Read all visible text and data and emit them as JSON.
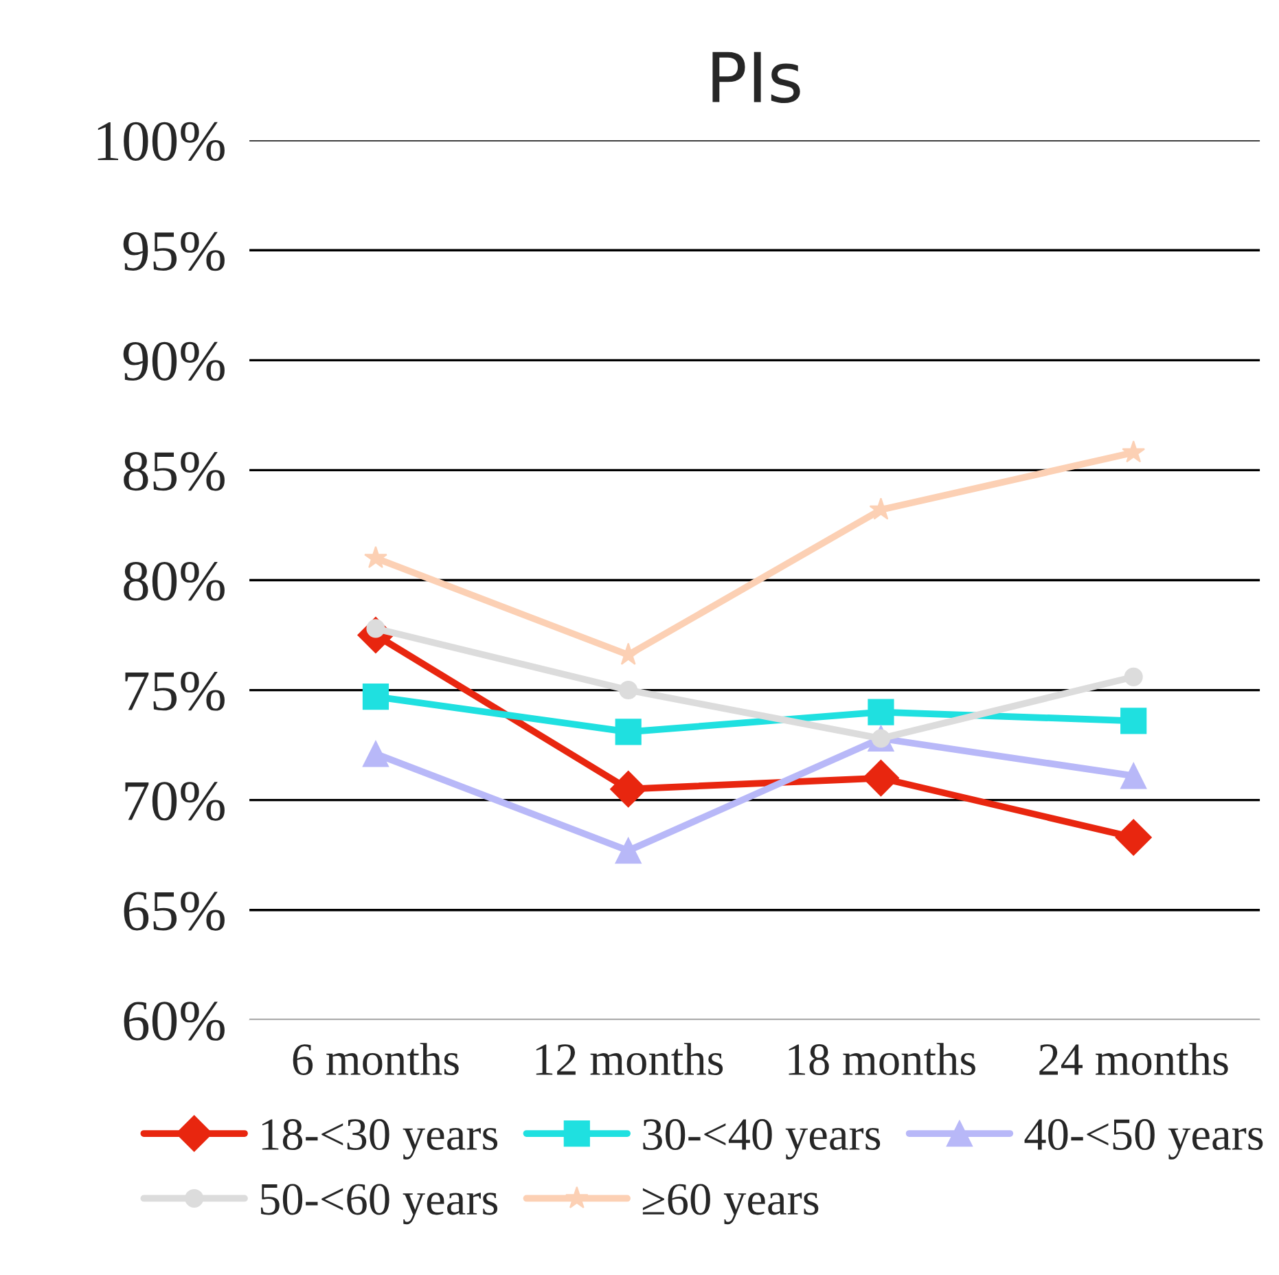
{
  "chart_data": {
    "type": "line",
    "title": "PIs",
    "categories": [
      "6 months",
      "12 months",
      "18 months",
      "24 months"
    ],
    "series": [
      {
        "name": "18-<30 years",
        "color": "#e8260f",
        "marker": "diamond",
        "values": [
          77.5,
          70.5,
          71.0,
          68.3
        ]
      },
      {
        "name": "30-<40 years",
        "color": "#1fe0e0",
        "marker": "square",
        "values": [
          74.7,
          73.1,
          74.0,
          73.6
        ]
      },
      {
        "name": "40-<50 years",
        "color": "#b8b8f8",
        "marker": "triangle",
        "values": [
          72.1,
          67.7,
          72.8,
          71.1
        ]
      },
      {
        "name": "50-<60 years",
        "color": "#dcdcdc",
        "marker": "circle",
        "values": [
          77.8,
          75.0,
          72.8,
          75.6
        ]
      },
      {
        "name": "≥60 years",
        "color": "#fcd0b4",
        "marker": "star",
        "values": [
          81.0,
          76.6,
          83.2,
          85.8
        ]
      }
    ],
    "ylim": [
      60,
      100
    ],
    "yticks": [
      {
        "value": 60,
        "label": "60%"
      },
      {
        "value": 65,
        "label": "65%"
      },
      {
        "value": 70,
        "label": "70%"
      },
      {
        "value": 75,
        "label": "75%"
      },
      {
        "value": 80,
        "label": "80%"
      },
      {
        "value": 85,
        "label": "85%"
      },
      {
        "value": 90,
        "label": "90%"
      },
      {
        "value": 95,
        "label": "95%"
      },
      {
        "value": 100,
        "label": "100%"
      }
    ],
    "grid": "y",
    "legend": "bottom",
    "line_style": "solid"
  }
}
